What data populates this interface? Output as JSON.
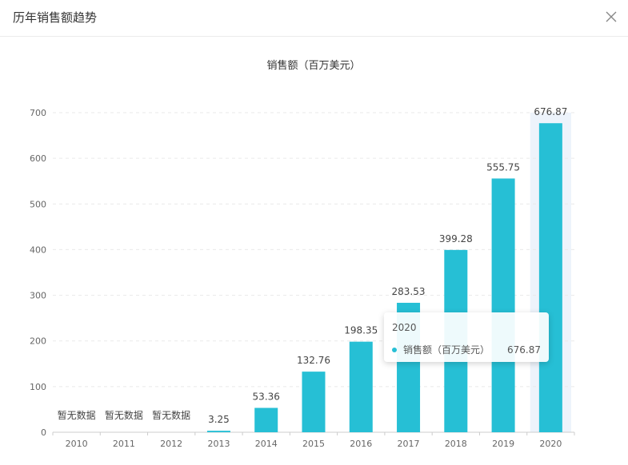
{
  "dialog": {
    "title": "历年销售额趋势"
  },
  "colors": {
    "bar": "#26bfd5",
    "highlight_band": "#edf3fb",
    "axis": "#cccccc",
    "grid": "#e9e9e9",
    "text": "#666666"
  },
  "no_data_label": "暂无数据",
  "tooltip": {
    "title": "2020",
    "series_name": "销售额（百万美元）",
    "value": "676.87"
  },
  "chart_data": {
    "type": "bar",
    "title": "销售额（百万美元）",
    "categories": [
      "2010",
      "2011",
      "2012",
      "2013",
      "2014",
      "2015",
      "2016",
      "2017",
      "2018",
      "2019",
      "2020"
    ],
    "series": [
      {
        "name": "销售额（百万美元）",
        "values": [
          null,
          null,
          null,
          3.25,
          53.36,
          132.76,
          198.35,
          283.53,
          399.28,
          555.75,
          676.87
        ]
      }
    ],
    "ylim": [
      0,
      700
    ],
    "yticks": [
      0,
      100,
      200,
      300,
      400,
      500,
      600,
      700
    ],
    "grid": true,
    "highlighted_category": "2020"
  }
}
